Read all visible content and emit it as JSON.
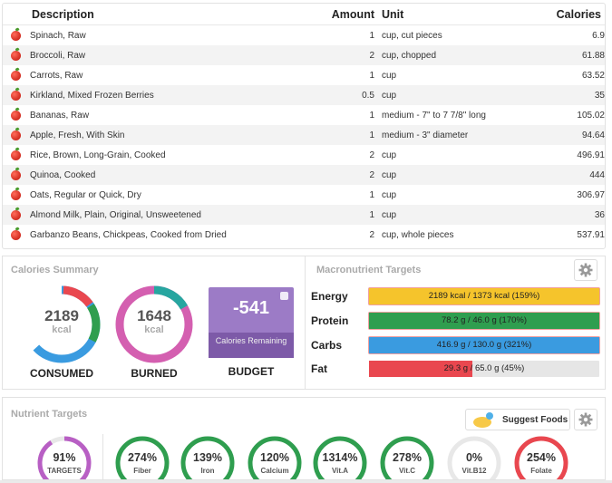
{
  "table": {
    "headers": {
      "description": "Description",
      "amount": "Amount",
      "unit": "Unit",
      "calories": "Calories"
    },
    "rows": [
      {
        "description": "Spinach, Raw",
        "amount": "1",
        "unit": "cup, cut pieces",
        "calories": "6.9"
      },
      {
        "description": "Broccoli, Raw",
        "amount": "2",
        "unit": "cup, chopped",
        "calories": "61.88"
      },
      {
        "description": "Carrots, Raw",
        "amount": "1",
        "unit": "cup",
        "calories": "63.52"
      },
      {
        "description": "Kirkland, Mixed Frozen Berries",
        "amount": "0.5",
        "unit": "cup",
        "calories": "35"
      },
      {
        "description": "Bananas, Raw",
        "amount": "1",
        "unit": "medium - 7\" to 7 7/8\" long",
        "calories": "105.02"
      },
      {
        "description": "Apple, Fresh, With Skin",
        "amount": "1",
        "unit": "medium - 3\" diameter",
        "calories": "94.64"
      },
      {
        "description": "Rice, Brown, Long-Grain, Cooked",
        "amount": "2",
        "unit": "cup",
        "calories": "496.91"
      },
      {
        "description": "Quinoa, Cooked",
        "amount": "2",
        "unit": "cup",
        "calories": "444"
      },
      {
        "description": "Oats, Regular or Quick, Dry",
        "amount": "1",
        "unit": "cup",
        "calories": "306.97"
      },
      {
        "description": "Almond Milk, Plain, Original, Unsweetened",
        "amount": "1",
        "unit": "cup",
        "calories": "36"
      },
      {
        "description": "Garbanzo Beans, Chickpeas, Cooked from Dried",
        "amount": "2",
        "unit": "cup, whole pieces",
        "calories": "537.91"
      }
    ]
  },
  "calories_summary": {
    "title": "Calories Summary",
    "consumed": {
      "value": "2189",
      "unit": "kcal",
      "label": "CONSUMED"
    },
    "burned": {
      "value": "1648",
      "unit": "kcal",
      "label": "BURNED"
    },
    "budget": {
      "value": "-541",
      "sub": "Calories Remaining",
      "label": "BUDGET"
    }
  },
  "macros": {
    "title": "Macronutrient Targets",
    "items": [
      {
        "name": "Energy",
        "text": "2189 kcal / 1373 kcal (159%)",
        "fill": 1.0,
        "color": "#f5c42c"
      },
      {
        "name": "Protein",
        "text": "78.2 g / 46.0 g (170%)",
        "fill": 1.0,
        "color": "#2f9e4f"
      },
      {
        "name": "Carbs",
        "text": "416.9 g / 130.0 g (321%)",
        "fill": 1.0,
        "color": "#3a9be0"
      },
      {
        "name": "Fat",
        "text": "29.3 g / 65.0 g (45%)",
        "fill": 0.45,
        "color": "#e9474f"
      }
    ]
  },
  "nutrients": {
    "title": "Nutrient Targets",
    "suggest_label": "Suggest Foods",
    "targets": {
      "pct": "91%",
      "name": "TARGETS",
      "color": "#b85fc4",
      "fill": 0.91
    },
    "items": [
      {
        "pct": "274%",
        "name": "Fiber",
        "color": "#2f9e4f",
        "fill": 1.0
      },
      {
        "pct": "139%",
        "name": "Iron",
        "color": "#2f9e4f",
        "fill": 1.0
      },
      {
        "pct": "120%",
        "name": "Calcium",
        "color": "#2f9e4f",
        "fill": 1.0
      },
      {
        "pct": "1314%",
        "name": "Vit.A",
        "color": "#2f9e4f",
        "fill": 1.0
      },
      {
        "pct": "278%",
        "name": "Vit.C",
        "color": "#2f9e4f",
        "fill": 1.0
      },
      {
        "pct": "0%",
        "name": "Vit.B12",
        "color": "#dddddd",
        "fill": 0.0
      },
      {
        "pct": "254%",
        "name": "Folate",
        "color": "#e9474f",
        "fill": 1.0
      }
    ]
  }
}
